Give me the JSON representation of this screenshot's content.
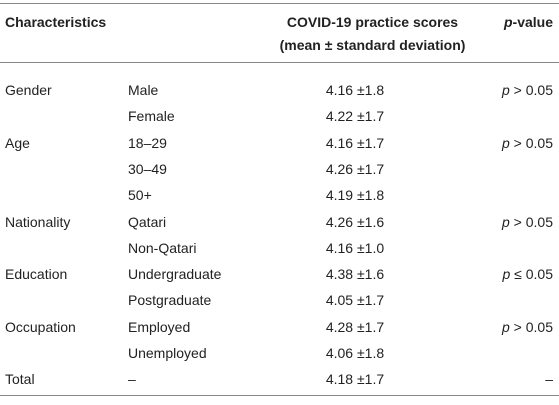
{
  "table": {
    "header": {
      "characteristics": "Characteristics",
      "scores": [
        "COVID-19 practice scores",
        "(mean ± standard deviation)"
      ],
      "pvalue": {
        "symbol": "p",
        "text": "-value"
      }
    },
    "groups": [
      {
        "label": "Gender",
        "pvalue": {
          "symbol": "p",
          "text": " > 0.05"
        },
        "items": [
          {
            "label": "Male",
            "score": "4.16 ±1.8"
          },
          {
            "label": "Female",
            "score": "4.22 ±1.7"
          }
        ]
      },
      {
        "label": "Age",
        "pvalue": {
          "symbol": "p",
          "text": " > 0.05"
        },
        "items": [
          {
            "label": "18–29",
            "score": "4.16 ±1.7"
          },
          {
            "label": "30–49",
            "score": "4.26 ±1.7"
          },
          {
            "label": "50+",
            "score": "4.19 ±1.8"
          }
        ]
      },
      {
        "label": "Nationality",
        "pvalue": {
          "symbol": "p",
          "text": " > 0.05"
        },
        "items": [
          {
            "label": "Qatari",
            "score": "4.26 ±1.6"
          },
          {
            "label": "Non-Qatari",
            "score": "4.16 ±1.0"
          }
        ]
      },
      {
        "label": "Education",
        "pvalue": {
          "symbol": "p",
          "text": " ≤ 0.05"
        },
        "items": [
          {
            "label": "Undergraduate",
            "score": "4.38 ±1.6"
          },
          {
            "label": "Postgraduate",
            "score": "4.05 ±1.7"
          }
        ]
      },
      {
        "label": "Occupation",
        "pvalue": {
          "symbol": "p",
          "text": " > 0.05"
        },
        "items": [
          {
            "label": "Employed",
            "score": "4.28 ±1.7"
          },
          {
            "label": "Unemployed",
            "score": "4.06 ±1.8"
          }
        ]
      },
      {
        "label": "Total",
        "pvalue": {
          "text": "–"
        },
        "items": [
          {
            "label": "–",
            "score": "4.18 ±1.7"
          }
        ]
      }
    ]
  }
}
